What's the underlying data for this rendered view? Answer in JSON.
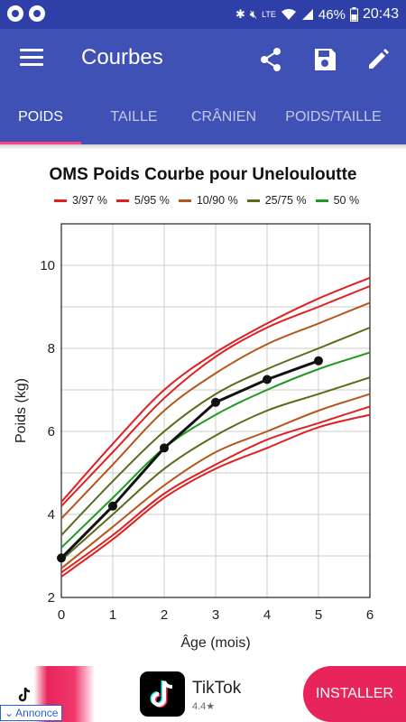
{
  "status_bar": {
    "battery": "46%",
    "time": "20:43",
    "network": "LTE",
    "icons": [
      "bluetooth-icon",
      "mute-icon",
      "volte-icon",
      "wifi-icon",
      "signal-icon",
      "battery-icon"
    ]
  },
  "app_bar": {
    "title": "Courbes",
    "icons": [
      "menu-icon",
      "share-icon",
      "save-icon",
      "edit-icon"
    ]
  },
  "tabs": [
    {
      "label": "POIDS",
      "active": true
    },
    {
      "label": "TAILLE",
      "active": false
    },
    {
      "label": "CRÂNIEN",
      "active": false
    },
    {
      "label": "POIDS/TAILLE",
      "active": false
    }
  ],
  "chart_data": {
    "type": "line",
    "title": "OMS Poids Courbe pour Unelouloutte",
    "xlabel": "Âge (mois)",
    "ylabel": "Poids (kg)",
    "xlim": [
      0,
      6
    ],
    "ylim": [
      2,
      11
    ],
    "xticks": [
      0,
      1,
      2,
      3,
      4,
      5,
      6
    ],
    "yticks": [
      2,
      4,
      6,
      8,
      10
    ],
    "grid": true,
    "legend_position": "top",
    "legend": [
      {
        "label": "3/97 %",
        "color": "#e02020"
      },
      {
        "label": "5/95 %",
        "color": "#e02020"
      },
      {
        "label": "10/90 %",
        "color": "#b5561c"
      },
      {
        "label": "25/75 %",
        "color": "#5a6b1a"
      },
      {
        "label": "50 %",
        "color": "#1f9a1f"
      }
    ],
    "series": [
      {
        "group": "3/97 %",
        "color": "#e02020",
        "x": [
          0,
          1,
          2,
          3,
          4,
          5,
          6
        ],
        "y": [
          2.5,
          3.4,
          4.4,
          5.1,
          5.6,
          6.1,
          6.4
        ]
      },
      {
        "group": "5/95 %",
        "color": "#e02020",
        "x": [
          0,
          1,
          2,
          3,
          4,
          5,
          6
        ],
        "y": [
          2.6,
          3.5,
          4.5,
          5.2,
          5.8,
          6.2,
          6.6
        ]
      },
      {
        "group": "10/90 %",
        "color": "#b5561c",
        "x": [
          0,
          1,
          2,
          3,
          4,
          5,
          6
        ],
        "y": [
          2.7,
          3.7,
          4.7,
          5.5,
          6.0,
          6.5,
          6.9
        ]
      },
      {
        "group": "25/75 %",
        "color": "#5a6b1a",
        "x": [
          0,
          1,
          2,
          3,
          4,
          5,
          6
        ],
        "y": [
          2.9,
          4.0,
          5.1,
          5.9,
          6.5,
          6.9,
          7.3
        ]
      },
      {
        "group": "50 %",
        "color": "#1f9a1f",
        "x": [
          0,
          1,
          2,
          3,
          4,
          5,
          6
        ],
        "y": [
          3.2,
          4.4,
          5.6,
          6.4,
          7.0,
          7.5,
          7.9
        ]
      },
      {
        "group": "25/75 %",
        "color": "#5a6b1a",
        "x": [
          0,
          1,
          2,
          3,
          4,
          5,
          6
        ],
        "y": [
          3.5,
          4.8,
          6.0,
          6.9,
          7.5,
          8.0,
          8.5
        ]
      },
      {
        "group": "10/90 %",
        "color": "#b5561c",
        "x": [
          0,
          1,
          2,
          3,
          4,
          5,
          6
        ],
        "y": [
          3.9,
          5.2,
          6.5,
          7.4,
          8.1,
          8.6,
          9.1
        ]
      },
      {
        "group": "5/95 %",
        "color": "#e02020",
        "x": [
          0,
          1,
          2,
          3,
          4,
          5,
          6
        ],
        "y": [
          4.2,
          5.5,
          6.8,
          7.8,
          8.5,
          9.0,
          9.5
        ]
      },
      {
        "group": "3/97 %",
        "color": "#e02020",
        "x": [
          0,
          1,
          2,
          3,
          4,
          5,
          6
        ],
        "y": [
          4.3,
          5.7,
          7.0,
          7.9,
          8.6,
          9.2,
          9.7
        ]
      }
    ],
    "measurements": {
      "color": "#111111",
      "x": [
        0,
        1,
        2,
        3,
        4,
        5
      ],
      "y": [
        2.95,
        4.2,
        5.6,
        6.7,
        7.25,
        7.7
      ]
    }
  },
  "ad": {
    "app_name": "TikTok",
    "rating": "4.4★",
    "install_label": "INSTALLER",
    "tag_label": "Annonce"
  }
}
